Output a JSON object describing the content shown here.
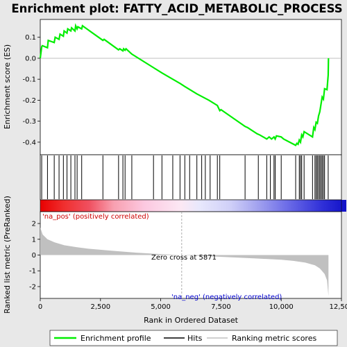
{
  "chart_data": {
    "type": "line",
    "title": "Enrichment plot: FATTY_ACID_METABOLIC_PROCESS",
    "xlabel": "Rank in Ordered Dataset",
    "x_ticks": [
      0,
      2500,
      5000,
      7500,
      10000,
      12500
    ],
    "x_tick_labels": [
      "0",
      "2,500",
      "5,000",
      "7,500",
      "10,000",
      "12,500"
    ],
    "xlim": [
      0,
      12500
    ],
    "top_panel": {
      "ylabel": "Enrichment score (ES)",
      "ylim": [
        -0.46,
        0.185
      ],
      "y_ticks": [
        0.1,
        0.0,
        -0.1,
        -0.2,
        -0.3,
        -0.4
      ],
      "y_tick_labels": [
        "0.1",
        "0.0",
        "-0.1",
        "-0.2",
        "-0.3",
        "-0.4"
      ],
      "series": [
        {
          "name": "Enrichment profile",
          "color": "#00ee00",
          "x": [
            0,
            60,
            90,
            300,
            330,
            580,
            620,
            780,
            820,
            960,
            990,
            1110,
            1140,
            1270,
            1300,
            1440,
            1470,
            1530,
            1560,
            1720,
            1750,
            2600,
            2650,
            3250,
            3300,
            3430,
            3460,
            3520,
            3560,
            3800,
            4700,
            5050,
            5500,
            5800,
            6000,
            6500,
            7000,
            7350,
            7450,
            7500,
            8000,
            8500,
            8600,
            9000,
            9100,
            9400,
            9500,
            9600,
            9700,
            9750,
            9800,
            10000,
            10100,
            10600,
            10650,
            10700,
            10750,
            10800,
            10850,
            10900,
            10950,
            11300,
            11350,
            11400,
            11450,
            11500,
            11550,
            11600,
            11650,
            11700,
            11750,
            11800,
            11900,
            11950,
            11960
          ],
          "y": [
            0.0,
            0.055,
            0.06,
            0.05,
            0.085,
            0.075,
            0.1,
            0.09,
            0.115,
            0.105,
            0.13,
            0.12,
            0.14,
            0.13,
            0.145,
            0.13,
            0.155,
            0.14,
            0.15,
            0.14,
            0.155,
            0.085,
            0.09,
            0.04,
            0.045,
            0.035,
            0.045,
            0.038,
            0.045,
            0.02,
            -0.045,
            -0.07,
            -0.1,
            -0.12,
            -0.135,
            -0.17,
            -0.2,
            -0.225,
            -0.25,
            -0.245,
            -0.285,
            -0.325,
            -0.33,
            -0.36,
            -0.365,
            -0.385,
            -0.375,
            -0.385,
            -0.375,
            -0.385,
            -0.37,
            -0.375,
            -0.385,
            -0.415,
            -0.405,
            -0.41,
            -0.39,
            -0.4,
            -0.365,
            -0.375,
            -0.35,
            -0.375,
            -0.33,
            -0.34,
            -0.305,
            -0.31,
            -0.275,
            -0.255,
            -0.22,
            -0.185,
            -0.195,
            -0.145,
            -0.15,
            -0.08,
            0.0
          ]
        }
      ],
      "hits": [
        60,
        300,
        580,
        780,
        960,
        1110,
        1270,
        1440,
        1530,
        1720,
        2600,
        3250,
        3430,
        3520,
        3800,
        4700,
        5050,
        5500,
        5800,
        6000,
        6200,
        6500,
        6700,
        6850,
        7050,
        7350,
        7450,
        8500,
        9050,
        9400,
        9550,
        9700,
        9750,
        10000,
        10600,
        10750,
        10800,
        10850,
        10950,
        11300,
        11400,
        11450,
        11500,
        11550,
        11600,
        11650,
        11700,
        11750,
        11800,
        11950
      ]
    },
    "bottom_panel": {
      "ylabel": "Ranked list metric (PreRanked)",
      "ylim": [
        -2.75,
        2.75
      ],
      "y_ticks": [
        2,
        1,
        0,
        -1,
        -2
      ],
      "y_tick_labels": [
        "2",
        "1",
        "0",
        "-1",
        "-2"
      ],
      "series": [
        {
          "name": "Ranking metric scores",
          "color": "#c0c0c0",
          "x": [
            0,
            100,
            300,
            600,
            1000,
            1500,
            2000,
            3000,
            4000,
            5000,
            5871,
            7000,
            8000,
            9000,
            10000,
            10500,
            11000,
            11400,
            11600,
            11800,
            11900,
            11960
          ],
          "y": [
            1.75,
            1.3,
            1.0,
            0.8,
            0.62,
            0.5,
            0.4,
            0.27,
            0.15,
            0.06,
            0.0,
            -0.08,
            -0.15,
            -0.22,
            -0.3,
            -0.37,
            -0.48,
            -0.65,
            -0.85,
            -1.2,
            -1.6,
            -2.6
          ]
        }
      ],
      "zero_cross_label": "Zero cross at 5871",
      "zero_cross_x": 5871,
      "pos_label": "'na_pos' (positively correlated)",
      "neg_label": "'na_neg' (negatively correlated)"
    },
    "legend": {
      "placement": "bottom",
      "entries": [
        {
          "label": "Enrichment profile",
          "color": "#00ee00"
        },
        {
          "label": "Hits",
          "color": "#000000"
        },
        {
          "label": "Ranking metric scores",
          "color": "#c0c0c0"
        }
      ]
    },
    "colors": {
      "pos_label": "#cc0000",
      "neg_label": "#0000cc",
      "background": "#e8e8e8"
    }
  }
}
